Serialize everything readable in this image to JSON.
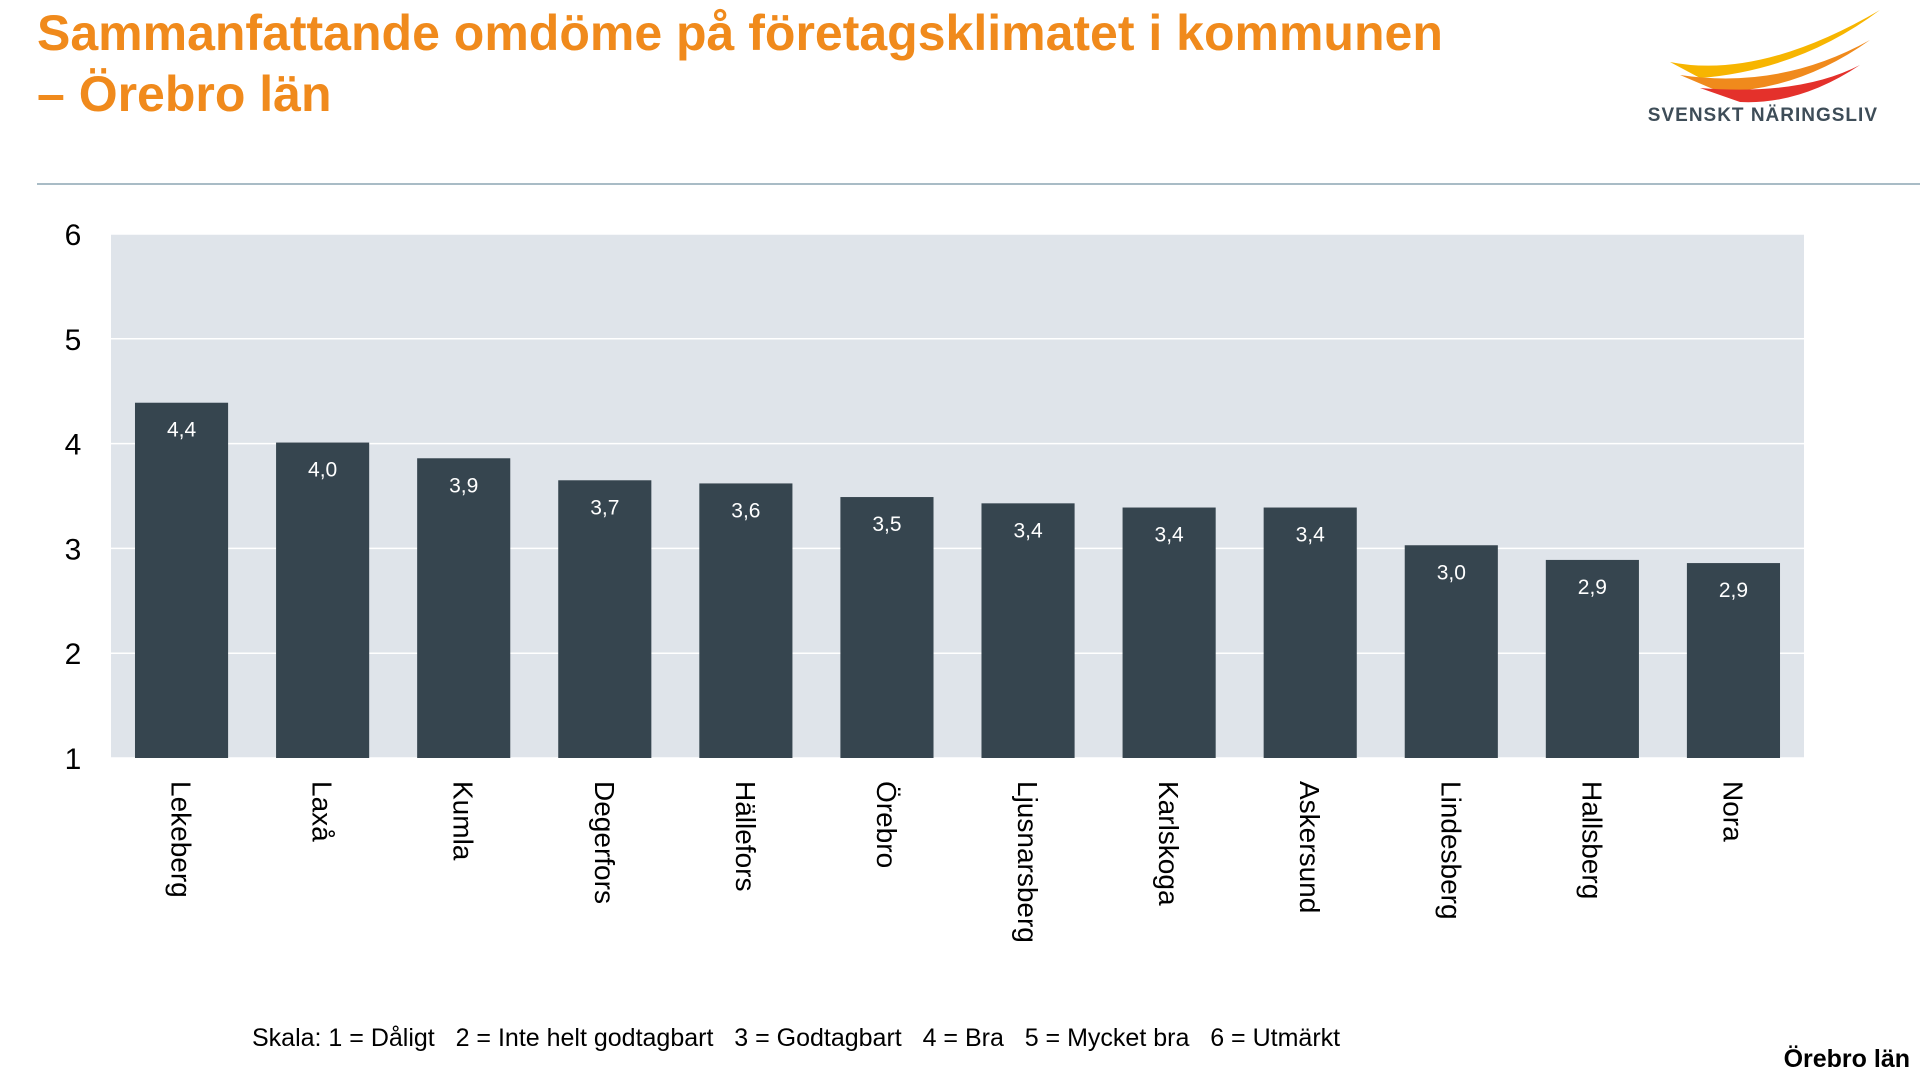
{
  "chart_data": {
    "type": "bar",
    "title": "Sammanfattande omdöme på företagsklimatet i kommunen – Örebro län",
    "logo": "SVENSKT NÄRINGSLIV",
    "note": "Skala: 1 = Dåligt   2 = Inte helt godtagbart   3 = Godtagbart   4 = Bra   5 = Mycket bra   6 = Utmärkt",
    "footer": "Örebro län",
    "categories": [
      "Lekeberg",
      "Laxå",
      "Kumla",
      "Degerfors",
      "Hällefors",
      "Örebro",
      "Ljusnarsberg",
      "Karlskoga",
      "Askersund",
      "Lindesberg",
      "Hallsberg",
      "Nora"
    ],
    "values": [
      4.39,
      4.01,
      3.86,
      3.65,
      3.62,
      3.49,
      3.43,
      3.39,
      3.39,
      3.03,
      2.89,
      2.86
    ],
    "value_labels": [
      "4,4",
      "4,0",
      "3,9",
      "3,7",
      "3,6",
      "3,5",
      "3,4",
      "3,4",
      "3,4",
      "3,0",
      "2,9",
      "2,9"
    ],
    "color": "#36454f",
    "ylim": [
      1,
      6
    ],
    "yticks": [
      1,
      2,
      3,
      4,
      5,
      6
    ],
    "grid": true
  }
}
